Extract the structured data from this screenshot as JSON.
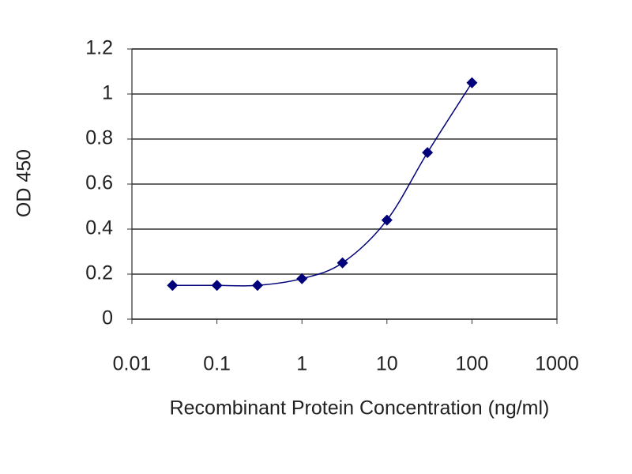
{
  "chart_data": {
    "type": "line",
    "x_label": "Recombinant Protein Concentration (ng/ml)",
    "y_label": "OD 450",
    "x": [
      0.03,
      0.1,
      0.3,
      1,
      3,
      10,
      30,
      100
    ],
    "values": [
      0.15,
      0.15,
      0.15,
      0.18,
      0.25,
      0.44,
      0.74,
      1.05
    ],
    "color": "#00007a",
    "xlog": true,
    "xlim": [
      0.01,
      1000
    ],
    "xticks": [
      0.01,
      0.1,
      1,
      10,
      100,
      1000
    ],
    "ylim": [
      0,
      1.2
    ],
    "yticks": [
      0,
      0.2,
      0.4,
      0.6,
      0.8,
      1,
      1.2
    ],
    "grid": true
  }
}
